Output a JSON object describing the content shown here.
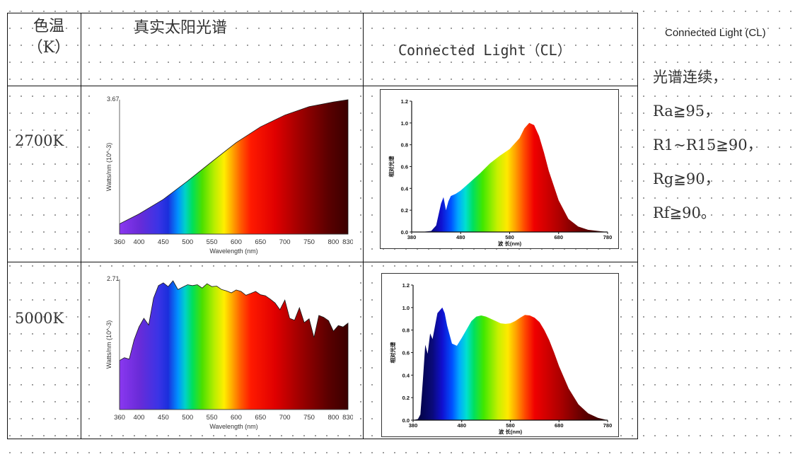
{
  "table": {
    "headers": {
      "temp": "色温（K）",
      "temp_line1": "色温",
      "temp_line2": "（K）",
      "sun": "真实太阳光谱",
      "cl": "Connected Light（CL）"
    },
    "rows": [
      {
        "label": "2700K"
      },
      {
        "label": "5000K"
      }
    ]
  },
  "side": {
    "title": "Connected Light (CL)",
    "lines": [
      "光谱连续，",
      "Ra≧95，",
      "R1~R15≧90，",
      "Rg≧90，",
      "Rf≧90。"
    ]
  },
  "chart_data": [
    {
      "id": "sun-2700",
      "type": "area",
      "title": "",
      "xlabel": "Wavelength (nm)",
      "ylabel": "Watts/nm (10^-3)",
      "y_top_label": "3.67",
      "xlim": [
        360,
        830
      ],
      "ylim": [
        0,
        3.67
      ],
      "x_ticks": [
        "360",
        "400",
        "450",
        "500",
        "550",
        "600",
        "650",
        "700",
        "750",
        "800",
        "830"
      ],
      "x_tick_values": [
        360,
        400,
        450,
        500,
        550,
        600,
        650,
        700,
        750,
        800,
        830
      ],
      "x": [
        360,
        400,
        450,
        500,
        550,
        600,
        650,
        700,
        750,
        800,
        830
      ],
      "values": [
        0.28,
        0.55,
        0.95,
        1.45,
        1.98,
        2.5,
        2.93,
        3.25,
        3.48,
        3.61,
        3.67
      ]
    },
    {
      "id": "cl-2700",
      "type": "area",
      "title": "",
      "xlabel": "波 长(nm)",
      "ylabel": "相对光谱",
      "xlim": [
        380,
        780
      ],
      "ylim": [
        0,
        1.2
      ],
      "y_ticks": [
        "0.0",
        "0.2",
        "0.4",
        "0.6",
        "0.8",
        "1.0",
        "1.2"
      ],
      "y_tick_values": [
        0,
        0.2,
        0.4,
        0.6,
        0.8,
        1.0,
        1.2
      ],
      "x_ticks": [
        "380",
        "480",
        "580",
        "680",
        "780"
      ],
      "x_tick_values": [
        380,
        480,
        580,
        680,
        780
      ],
      "x": [
        380,
        400,
        420,
        430,
        440,
        445,
        450,
        455,
        460,
        470,
        480,
        500,
        520,
        540,
        560,
        580,
        600,
        610,
        620,
        630,
        640,
        650,
        660,
        680,
        700,
        720,
        740,
        760,
        780
      ],
      "values": [
        0,
        0,
        0.01,
        0.06,
        0.26,
        0.32,
        0.2,
        0.28,
        0.33,
        0.35,
        0.38,
        0.46,
        0.54,
        0.63,
        0.7,
        0.76,
        0.86,
        0.95,
        1.0,
        0.98,
        0.88,
        0.73,
        0.56,
        0.29,
        0.12,
        0.05,
        0.02,
        0.01,
        0
      ]
    },
    {
      "id": "sun-5000",
      "type": "area",
      "title": "",
      "xlabel": "Wavelength (nm)",
      "ylabel": "Watts/nm (10^-3)",
      "y_top_label": "2.71",
      "xlim": [
        360,
        830
      ],
      "ylim": [
        0,
        2.71
      ],
      "x_ticks": [
        "360",
        "400",
        "450",
        "500",
        "550",
        "600",
        "650",
        "700",
        "750",
        "800",
        "830"
      ],
      "x_tick_values": [
        360,
        400,
        450,
        500,
        550,
        600,
        650,
        700,
        750,
        800,
        830
      ],
      "x": [
        360,
        370,
        380,
        390,
        400,
        410,
        420,
        430,
        440,
        450,
        460,
        470,
        480,
        490,
        500,
        510,
        520,
        530,
        540,
        550,
        560,
        570,
        580,
        590,
        600,
        610,
        620,
        630,
        640,
        650,
        660,
        670,
        680,
        690,
        700,
        710,
        720,
        730,
        740,
        750,
        760,
        770,
        780,
        790,
        800,
        810,
        820,
        830
      ],
      "values": [
        1.02,
        1.08,
        1.05,
        1.45,
        1.72,
        1.9,
        1.76,
        2.32,
        2.58,
        2.64,
        2.56,
        2.68,
        2.5,
        2.55,
        2.6,
        2.58,
        2.6,
        2.53,
        2.62,
        2.56,
        2.57,
        2.5,
        2.47,
        2.43,
        2.49,
        2.46,
        2.38,
        2.42,
        2.46,
        2.39,
        2.37,
        2.3,
        2.22,
        2.08,
        2.28,
        1.9,
        1.86,
        2.12,
        1.81,
        1.89,
        1.5,
        1.96,
        1.92,
        1.85,
        1.63,
        1.75,
        1.72,
        1.8
      ]
    },
    {
      "id": "cl-5000",
      "type": "area",
      "title": "",
      "xlabel": "波 长(nm)",
      "ylabel": "相对光谱",
      "xlim": [
        380,
        780
      ],
      "ylim": [
        0,
        1.2
      ],
      "y_ticks": [
        "0.0",
        "0.2",
        "0.4",
        "0.6",
        "0.8",
        "1.0",
        "1.2"
      ],
      "y_tick_values": [
        0,
        0.2,
        0.4,
        0.6,
        0.8,
        1.0,
        1.2
      ],
      "x_ticks": [
        "380",
        "480",
        "580",
        "680",
        "780"
      ],
      "x_tick_values": [
        380,
        480,
        580,
        680,
        780
      ],
      "x": [
        380,
        390,
        395,
        400,
        405,
        410,
        415,
        420,
        430,
        440,
        445,
        450,
        460,
        470,
        480,
        500,
        510,
        520,
        530,
        540,
        550,
        560,
        570,
        580,
        590,
        600,
        610,
        620,
        630,
        640,
        650,
        660,
        670,
        680,
        700,
        720,
        740,
        760,
        780
      ],
      "values": [
        0,
        0.01,
        0.05,
        0.35,
        0.67,
        0.59,
        0.77,
        0.72,
        0.95,
        1.0,
        0.95,
        0.84,
        0.68,
        0.66,
        0.73,
        0.88,
        0.92,
        0.93,
        0.92,
        0.9,
        0.88,
        0.86,
        0.855,
        0.86,
        0.88,
        0.91,
        0.935,
        0.93,
        0.91,
        0.87,
        0.8,
        0.71,
        0.6,
        0.48,
        0.28,
        0.14,
        0.06,
        0.02,
        0
      ]
    }
  ]
}
